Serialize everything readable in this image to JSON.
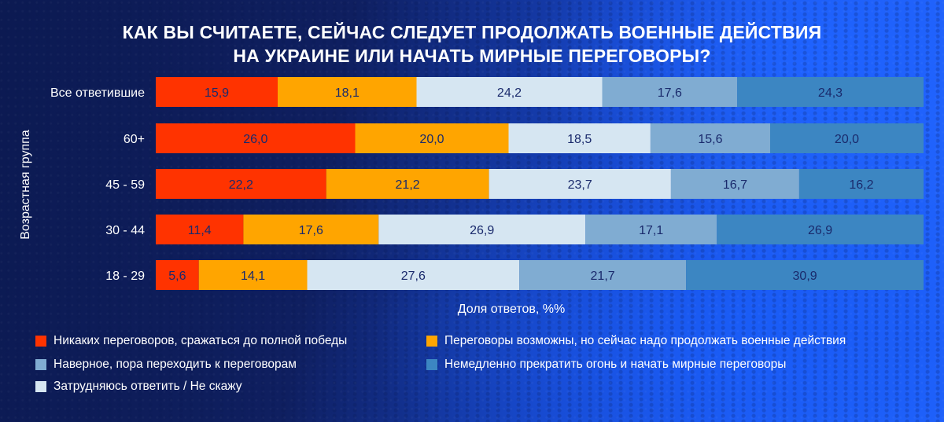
{
  "chart_data": {
    "type": "bar",
    "orientation": "horizontal",
    "stacked": true,
    "title": [
      "КАК ВЫ СЧИТАЕТЕ, СЕЙЧАС СЛЕДУЕТ ПРОДОЛЖАТЬ ВОЕННЫЕ ДЕЙСТВИЯ",
      "НА УКРАИНЕ ИЛИ НАЧАТЬ МИРНЫЕ ПЕРЕГОВОРЫ?"
    ],
    "xlabel": "Доля ответов, %%",
    "ylabel": "Возрастная группа",
    "categories": [
      "Все ответившие",
      "60+",
      "45 - 59",
      "30 - 44",
      "18 - 29"
    ],
    "series": [
      {
        "name": "Никаких переговоров, сражаться до полной победы",
        "color": "#ff3300",
        "label_color": "#1a2a6c",
        "values": [
          15.9,
          26.0,
          22.2,
          11.4,
          5.6
        ]
      },
      {
        "name": "Переговоры возможны, но сейчас надо продолжать военные действия",
        "color": "#ffa500",
        "label_color": "#1a2a6c",
        "values": [
          18.1,
          20.0,
          21.2,
          17.6,
          14.1
        ]
      },
      {
        "name": "Затрудняюсь ответить / Не скажу",
        "color": "#d6e6f2",
        "label_color": "#1a2a6c",
        "values": [
          24.2,
          18.5,
          23.7,
          26.9,
          27.6
        ]
      },
      {
        "name": "Наверное, пора переходить к переговорам",
        "color": "#80acd2",
        "label_color": "#1a2a6c",
        "values": [
          17.6,
          15.6,
          16.7,
          17.1,
          21.7
        ]
      },
      {
        "name": "Немедленно прекратить огонь и начать мирные переговоры",
        "color": "#3c86c2",
        "label_color": "#1a2a6c",
        "values": [
          24.3,
          20.0,
          16.2,
          26.9,
          30.9
        ]
      }
    ],
    "value_labels": [
      [
        "15,9",
        "18,1",
        "24,2",
        "17,6",
        "24,3"
      ],
      [
        "26,0",
        "20,0",
        "18,5",
        "15,6",
        "20,0"
      ],
      [
        "22,2",
        "21,2",
        "23,7",
        "16,7",
        "16,2"
      ],
      [
        "11,4",
        "17,6",
        "26,9",
        "17,1",
        "26,9"
      ],
      [
        "5,6",
        "14,1",
        "27,6",
        "21,7",
        "30,9"
      ]
    ],
    "grid": false,
    "legend_placement": "bottom"
  }
}
